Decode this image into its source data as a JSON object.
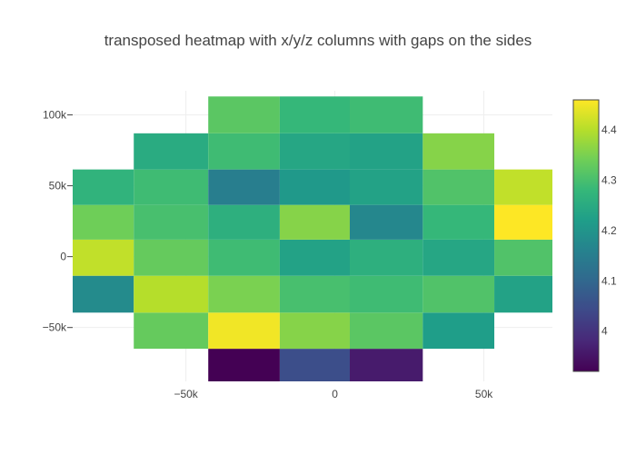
{
  "chart_data": {
    "type": "heatmap",
    "title": "transposed heatmap with x/y/z columns with gaps on the sides",
    "xlabel": "",
    "ylabel": "",
    "x": [
      -80000,
      -55000,
      -30000,
      -7000,
      17000,
      42000,
      65000
    ],
    "y": [
      -78000,
      -52000,
      -27000,
      0,
      24000,
      49000,
      74000,
      100000
    ],
    "xlim": [
      -88000,
      73000
    ],
    "ylim": [
      -88000,
      117000
    ],
    "xticks": [
      -50000,
      0,
      50000
    ],
    "xticklabels": [
      "−50k",
      "0",
      "50k"
    ],
    "yticks": [
      -50000,
      0,
      50000,
      100000
    ],
    "yticklabels": [
      "−50k",
      "0",
      "50k",
      "100k"
    ],
    "z": [
      [
        null,
        null,
        3.92,
        4.05,
        3.96,
        null,
        null
      ],
      [
        null,
        4.33,
        4.45,
        4.36,
        4.32,
        4.22,
        null
      ],
      [
        4.18,
        4.4,
        4.35,
        4.3,
        4.29,
        4.31,
        4.23
      ],
      [
        4.41,
        4.33,
        4.29,
        4.23,
        4.26,
        4.24,
        4.31
      ],
      [
        4.34,
        4.3,
        4.26,
        4.36,
        4.17,
        4.28,
        4.46
      ],
      [
        4.27,
        4.29,
        4.15,
        4.21,
        4.23,
        4.31,
        4.41
      ],
      [
        null,
        4.25,
        4.29,
        4.24,
        4.23,
        4.36,
        null
      ],
      [
        null,
        null,
        4.32,
        4.28,
        4.29,
        null,
        null
      ]
    ],
    "colorscale": "Viridis",
    "zmin": 3.92,
    "zmax": 4.46,
    "colorbar_ticks": [
      4.0,
      4.1,
      4.2,
      4.3,
      4.4
    ],
    "colorbar_ticklabels": [
      "4",
      "4.1",
      "4.2",
      "4.3",
      "4.4"
    ],
    "grid": true,
    "colorbar_position": "right"
  }
}
